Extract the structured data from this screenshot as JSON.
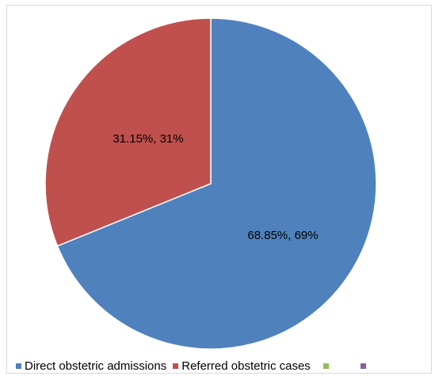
{
  "chart_data": {
    "type": "pie",
    "slices": [
      {
        "label": "Direct obstetric admissions",
        "value": 68.85,
        "data_label": "68.85%, 69%",
        "color": "#4f81bd"
      },
      {
        "label": "Referred obstetric cases",
        "value": 31.15,
        "data_label": "31.15%, 31%",
        "color": "#c0504d"
      }
    ],
    "legend": {
      "position": "bottom",
      "entries": [
        {
          "label": "Direct obstetric admissions",
          "color": "#4f81bd"
        },
        {
          "label": "Referred obstetric cases",
          "color": "#c0504d"
        },
        {
          "label": "",
          "color": "#9bbb59"
        },
        {
          "label": "",
          "color": "#8064a2"
        }
      ]
    },
    "start_angle_deg": 0,
    "direction": "clockwise"
  }
}
